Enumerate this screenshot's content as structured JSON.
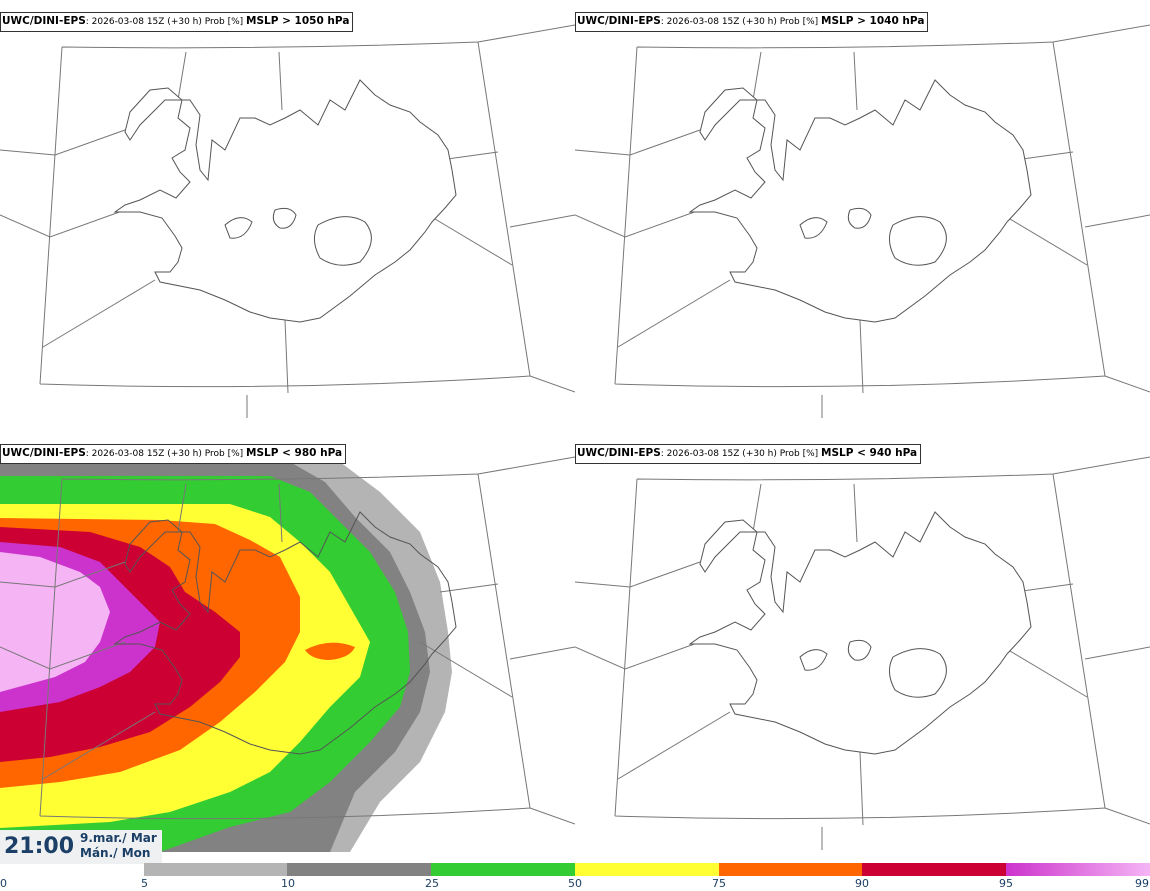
{
  "panels": [
    {
      "source": "UWC/DINI-EPS",
      "run": ": 2026-03-08 15Z (+30 h) Prob [%]",
      "var": "MSLP > 1050 hPa"
    },
    {
      "source": "UWC/DINI-EPS",
      "run": ": 2026-03-08 15Z (+30 h) Prob [%]",
      "var": "MSLP > 1040 hPa"
    },
    {
      "source": "UWC/DINI-EPS",
      "run": ": 2026-03-08 15Z (+30 h) Prob [%]",
      "var": "MSLP < 980 hPa"
    },
    {
      "source": "UWC/DINI-EPS",
      "run": ": 2026-03-08 15Z (+30 h) Prob [%]",
      "var": "MSLP < 940 hPa"
    }
  ],
  "valid_time": {
    "time": "21:00",
    "date_line1": "9.mar./ Mar",
    "date_line2": "Mán./ Mon"
  },
  "colorbar": {
    "ticks": [
      "0",
      "5",
      "10",
      "25",
      "50",
      "75",
      "90",
      "95",
      "99"
    ],
    "colors": [
      "#ffffff",
      "#b4b4b4",
      "#828282",
      "#33cc33",
      "#ffff33",
      "#ff6600",
      "#cc0033",
      "#cc33cc",
      "#f5b5f5"
    ]
  }
}
